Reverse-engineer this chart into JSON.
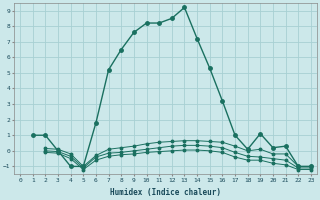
{
  "xlabel": "Humidex (Indice chaleur)",
  "bg_color": "#cce8ea",
  "grid_color": "#a8d0d3",
  "line_color": "#1a7060",
  "xlim": [
    -0.5,
    23.5
  ],
  "ylim": [
    -1.5,
    9.5
  ],
  "xticks": [
    0,
    1,
    2,
    3,
    4,
    5,
    6,
    7,
    8,
    9,
    10,
    11,
    12,
    13,
    14,
    15,
    16,
    17,
    18,
    19,
    20,
    21,
    22,
    23
  ],
  "yticks": [
    -1,
    0,
    1,
    2,
    3,
    4,
    5,
    6,
    7,
    8,
    9
  ],
  "line1_x": [
    1,
    2,
    3,
    4,
    5,
    6,
    7,
    8,
    9,
    10,
    11,
    12,
    13,
    14,
    15,
    16,
    17,
    18,
    19,
    20,
    21,
    22,
    23
  ],
  "line1_y": [
    1,
    1,
    0,
    -1,
    -1,
    1.8,
    5.2,
    6.5,
    7.6,
    8.2,
    8.2,
    8.5,
    9.2,
    7.2,
    5.3,
    3.2,
    1.0,
    0.1,
    1.1,
    0.2,
    0.3,
    -1.0,
    -1.0
  ],
  "line2_x": [
    2,
    3,
    4,
    5,
    6,
    7,
    8,
    9,
    10,
    11,
    12,
    13,
    14,
    15,
    16,
    17,
    18,
    19,
    20,
    21,
    22,
    23
  ],
  "line2_y": [
    0.15,
    0.1,
    -0.2,
    -1.0,
    -0.3,
    0.1,
    0.2,
    0.3,
    0.45,
    0.55,
    0.6,
    0.65,
    0.65,
    0.6,
    0.55,
    0.3,
    0.0,
    0.1,
    -0.2,
    -0.2,
    -1.0,
    -1.0
  ],
  "line3_x": [
    2,
    3,
    4,
    5,
    6,
    7,
    8,
    9,
    10,
    11,
    12,
    13,
    14,
    15,
    16,
    17,
    18,
    19,
    20,
    21,
    22,
    23
  ],
  "line3_y": [
    0.0,
    -0.05,
    -0.35,
    -1.1,
    -0.4,
    -0.15,
    -0.1,
    0.0,
    0.1,
    0.2,
    0.3,
    0.35,
    0.35,
    0.3,
    0.2,
    -0.1,
    -0.35,
    -0.4,
    -0.5,
    -0.6,
    -1.1,
    -1.1
  ],
  "line4_x": [
    2,
    3,
    4,
    5,
    6,
    7,
    8,
    9,
    10,
    11,
    12,
    13,
    14,
    15,
    16,
    17,
    18,
    19,
    20,
    21,
    22,
    23
  ],
  "line4_y": [
    -0.1,
    -0.15,
    -0.5,
    -1.2,
    -0.6,
    -0.35,
    -0.25,
    -0.2,
    -0.1,
    -0.05,
    0.0,
    0.05,
    0.05,
    0.0,
    -0.1,
    -0.4,
    -0.6,
    -0.6,
    -0.8,
    -0.9,
    -1.2,
    -1.2
  ]
}
